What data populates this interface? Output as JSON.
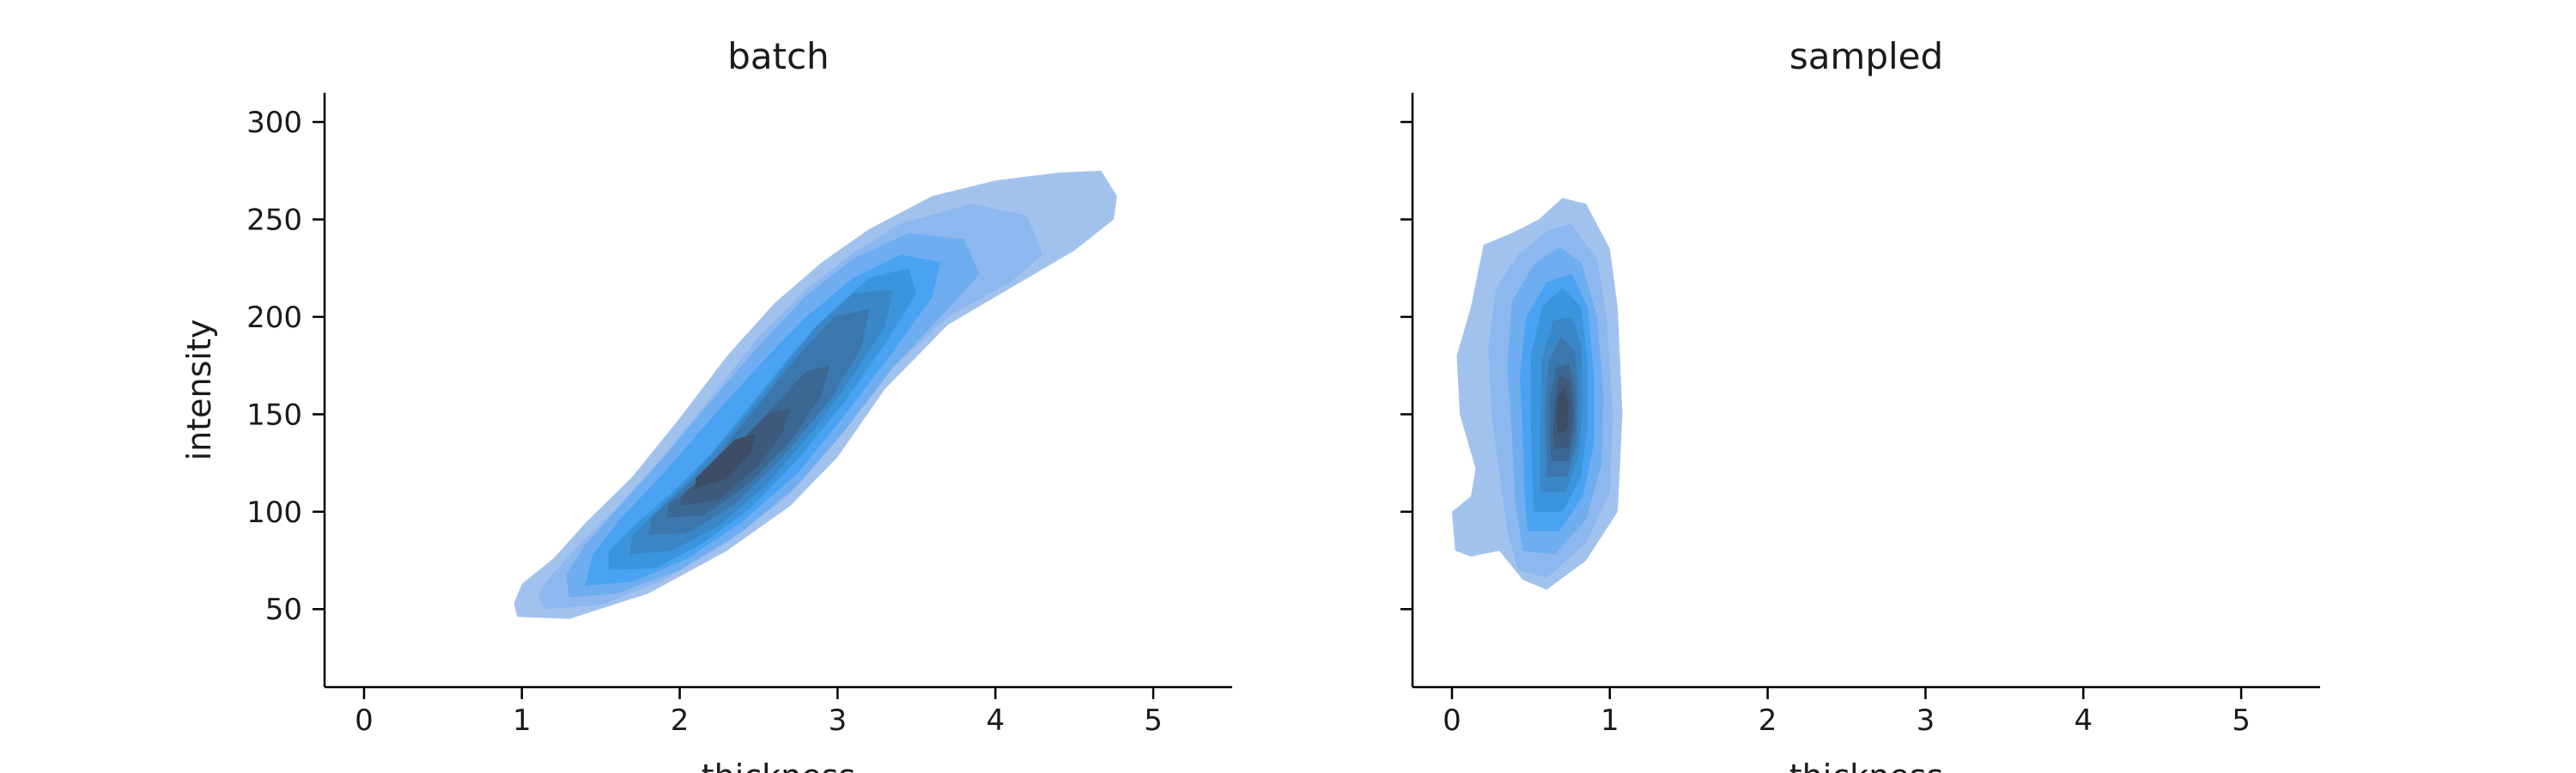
{
  "chart_data": [
    {
      "type": "kde",
      "title": "batch",
      "xlabel": "thickness",
      "ylabel": "intensity",
      "xlim": [
        -0.25,
        5.5
      ],
      "ylim": [
        10,
        315
      ],
      "xticks": [
        0,
        1,
        2,
        3,
        4,
        5
      ],
      "yticks": [
        50,
        100,
        150,
        200,
        250,
        300
      ],
      "show_yticklabels": true,
      "grid": false,
      "legend": "none",
      "colors": [
        "#a2c2ee",
        "#8db8ef",
        "#6fadf1",
        "#4aa3f2",
        "#3a95dd",
        "#3a86c6",
        "#3b77ac",
        "#3b6793",
        "#3d5a7d",
        "#3d4d66"
      ],
      "density_contours": [
        [
          [
            0.97,
            46
          ],
          [
            1.3,
            45
          ],
          [
            1.8,
            58
          ],
          [
            2.3,
            80
          ],
          [
            2.7,
            103
          ],
          [
            3.0,
            128
          ],
          [
            3.3,
            163
          ],
          [
            3.7,
            196
          ],
          [
            4.1,
            215
          ],
          [
            4.5,
            234
          ],
          [
            4.75,
            250
          ],
          [
            4.77,
            262
          ],
          [
            4.67,
            275
          ],
          [
            4.4,
            274
          ],
          [
            4.0,
            270
          ],
          [
            3.6,
            262
          ],
          [
            3.2,
            245
          ],
          [
            2.9,
            228
          ],
          [
            2.6,
            207
          ],
          [
            2.3,
            180
          ],
          [
            2.0,
            148
          ],
          [
            1.7,
            118
          ],
          [
            1.4,
            94
          ],
          [
            1.2,
            76
          ],
          [
            1.0,
            63
          ],
          [
            0.95,
            53
          ]
        ],
        [
          [
            1.15,
            50
          ],
          [
            1.5,
            52
          ],
          [
            1.9,
            65
          ],
          [
            2.3,
            84
          ],
          [
            2.7,
            109
          ],
          [
            3.0,
            137
          ],
          [
            3.3,
            170
          ],
          [
            3.7,
            200
          ],
          [
            4.1,
            218
          ],
          [
            4.3,
            232
          ],
          [
            4.2,
            252
          ],
          [
            3.85,
            258
          ],
          [
            3.4,
            248
          ],
          [
            3.1,
            233
          ],
          [
            2.8,
            214
          ],
          [
            2.5,
            190
          ],
          [
            2.2,
            159
          ],
          [
            1.9,
            129
          ],
          [
            1.6,
            102
          ],
          [
            1.35,
            82
          ],
          [
            1.15,
            64
          ],
          [
            1.1,
            56
          ]
        ],
        [
          [
            1.3,
            56
          ],
          [
            1.6,
            58
          ],
          [
            2.0,
            70
          ],
          [
            2.4,
            90
          ],
          [
            2.75,
            114
          ],
          [
            3.05,
            142
          ],
          [
            3.35,
            174
          ],
          [
            3.7,
            204
          ],
          [
            3.9,
            222
          ],
          [
            3.8,
            240
          ],
          [
            3.45,
            243
          ],
          [
            3.1,
            230
          ],
          [
            2.8,
            211
          ],
          [
            2.5,
            185
          ],
          [
            2.2,
            157
          ],
          [
            1.9,
            128
          ],
          [
            1.6,
            101
          ],
          [
            1.4,
            83
          ],
          [
            1.28,
            68
          ]
        ],
        [
          [
            1.4,
            62
          ],
          [
            1.7,
            64
          ],
          [
            2.05,
            76
          ],
          [
            2.4,
            95
          ],
          [
            2.75,
            120
          ],
          [
            3.05,
            150
          ],
          [
            3.35,
            182
          ],
          [
            3.6,
            210
          ],
          [
            3.65,
            228
          ],
          [
            3.4,
            232
          ],
          [
            3.1,
            220
          ],
          [
            2.8,
            200
          ],
          [
            2.5,
            175
          ],
          [
            2.2,
            148
          ],
          [
            1.9,
            120
          ],
          [
            1.62,
            96
          ],
          [
            1.45,
            78
          ]
        ],
        [
          [
            1.55,
            70
          ],
          [
            1.85,
            71
          ],
          [
            2.15,
            84
          ],
          [
            2.45,
            102
          ],
          [
            2.75,
            127
          ],
          [
            3.05,
            157
          ],
          [
            3.3,
            186
          ],
          [
            3.5,
            212
          ],
          [
            3.45,
            225
          ],
          [
            3.2,
            220
          ],
          [
            2.95,
            202
          ],
          [
            2.7,
            180
          ],
          [
            2.45,
            155
          ],
          [
            2.2,
            130
          ],
          [
            1.95,
            110
          ],
          [
            1.7,
            92
          ],
          [
            1.55,
            80
          ]
        ],
        [
          [
            1.68,
            78
          ],
          [
            1.95,
            80
          ],
          [
            2.25,
            93
          ],
          [
            2.55,
            114
          ],
          [
            2.85,
            142
          ],
          [
            3.1,
            170
          ],
          [
            3.3,
            195
          ],
          [
            3.35,
            214
          ],
          [
            3.1,
            212
          ],
          [
            2.85,
            194
          ],
          [
            2.6,
            168
          ],
          [
            2.35,
            143
          ],
          [
            2.1,
            120
          ],
          [
            1.85,
            100
          ],
          [
            1.7,
            88
          ]
        ],
        [
          [
            1.8,
            88
          ],
          [
            2.05,
            89
          ],
          [
            2.35,
            104
          ],
          [
            2.65,
            128
          ],
          [
            2.95,
            157
          ],
          [
            3.15,
            184
          ],
          [
            3.2,
            204
          ],
          [
            2.98,
            200
          ],
          [
            2.75,
            180
          ],
          [
            2.5,
            155
          ],
          [
            2.25,
            130
          ],
          [
            2.0,
            110
          ],
          [
            1.82,
            97
          ]
        ],
        [
          [
            1.92,
            97
          ],
          [
            2.15,
            98
          ],
          [
            2.45,
            115
          ],
          [
            2.7,
            136
          ],
          [
            2.9,
            160
          ],
          [
            2.95,
            175
          ],
          [
            2.8,
            172
          ],
          [
            2.55,
            150
          ],
          [
            2.3,
            128
          ],
          [
            2.08,
            112
          ],
          [
            1.93,
            104
          ]
        ],
        [
          [
            2.0,
            103
          ],
          [
            2.25,
            106
          ],
          [
            2.5,
            124
          ],
          [
            2.65,
            140
          ],
          [
            2.7,
            153
          ],
          [
            2.55,
            150
          ],
          [
            2.35,
            133
          ],
          [
            2.12,
            116
          ],
          [
            2.02,
            109
          ]
        ],
        [
          [
            2.1,
            112
          ],
          [
            2.3,
            117
          ],
          [
            2.45,
            130
          ],
          [
            2.48,
            140
          ],
          [
            2.35,
            137
          ],
          [
            2.2,
            125
          ],
          [
            2.1,
            117
          ]
        ]
      ]
    },
    {
      "type": "kde",
      "title": "sampled",
      "xlabel": "thickness",
      "ylabel": "",
      "xlim": [
        -0.25,
        5.5
      ],
      "ylim": [
        10,
        315
      ],
      "xticks": [
        0,
        1,
        2,
        3,
        4,
        5
      ],
      "yticks": [
        50,
        100,
        150,
        200,
        250,
        300
      ],
      "show_yticklabels": false,
      "grid": false,
      "legend": "none",
      "colors": [
        "#a2c2ee",
        "#8db8ef",
        "#6fadf1",
        "#4aa3f2",
        "#3a95dd",
        "#3a86c6",
        "#3b77ac",
        "#3b6793",
        "#3d5a7d",
        "#3d4d66"
      ],
      "density_contours": [
        [
          [
            0.45,
            65
          ],
          [
            0.6,
            60
          ],
          [
            0.85,
            75
          ],
          [
            1.05,
            100
          ],
          [
            1.08,
            150
          ],
          [
            1.05,
            205
          ],
          [
            1.0,
            235
          ],
          [
            0.85,
            258
          ],
          [
            0.7,
            261
          ],
          [
            0.55,
            250
          ],
          [
            0.38,
            243
          ],
          [
            0.2,
            237
          ],
          [
            0.12,
            205
          ],
          [
            0.03,
            180
          ],
          [
            0.05,
            150
          ],
          [
            0.15,
            122
          ],
          [
            0.12,
            108
          ],
          [
            0.0,
            100
          ],
          [
            0.02,
            80
          ],
          [
            0.12,
            77
          ],
          [
            0.3,
            80
          ]
        ],
        [
          [
            0.42,
            70
          ],
          [
            0.6,
            66
          ],
          [
            0.85,
            84
          ],
          [
            1.0,
            110
          ],
          [
            1.02,
            150
          ],
          [
            0.98,
            200
          ],
          [
            0.92,
            230
          ],
          [
            0.75,
            248
          ],
          [
            0.6,
            244
          ],
          [
            0.42,
            232
          ],
          [
            0.28,
            215
          ],
          [
            0.23,
            185
          ],
          [
            0.25,
            150
          ],
          [
            0.3,
            120
          ],
          [
            0.35,
            90
          ]
        ],
        [
          [
            0.45,
            80
          ],
          [
            0.65,
            78
          ],
          [
            0.85,
            96
          ],
          [
            0.95,
            125
          ],
          [
            0.96,
            160
          ],
          [
            0.92,
            200
          ],
          [
            0.82,
            228
          ],
          [
            0.68,
            236
          ],
          [
            0.52,
            227
          ],
          [
            0.38,
            208
          ],
          [
            0.35,
            175
          ],
          [
            0.38,
            140
          ],
          [
            0.4,
            105
          ]
        ],
        [
          [
            0.48,
            90
          ],
          [
            0.68,
            90
          ],
          [
            0.83,
            108
          ],
          [
            0.9,
            135
          ],
          [
            0.9,
            170
          ],
          [
            0.86,
            205
          ],
          [
            0.76,
            222
          ],
          [
            0.6,
            218
          ],
          [
            0.47,
            200
          ],
          [
            0.43,
            170
          ],
          [
            0.45,
            135
          ],
          [
            0.46,
            108
          ]
        ],
        [
          [
            0.52,
            100
          ],
          [
            0.7,
            100
          ],
          [
            0.82,
            118
          ],
          [
            0.86,
            145
          ],
          [
            0.86,
            175
          ],
          [
            0.82,
            205
          ],
          [
            0.7,
            215
          ],
          [
            0.57,
            205
          ],
          [
            0.5,
            180
          ],
          [
            0.5,
            145
          ],
          [
            0.51,
            115
          ]
        ],
        [
          [
            0.56,
            110
          ],
          [
            0.72,
            110
          ],
          [
            0.8,
            128
          ],
          [
            0.83,
            155
          ],
          [
            0.82,
            185
          ],
          [
            0.76,
            200
          ],
          [
            0.64,
            198
          ],
          [
            0.57,
            178
          ],
          [
            0.56,
            145
          ],
          [
            0.56,
            120
          ]
        ],
        [
          [
            0.6,
            118
          ],
          [
            0.73,
            118
          ],
          [
            0.79,
            135
          ],
          [
            0.8,
            160
          ],
          [
            0.78,
            182
          ],
          [
            0.69,
            190
          ],
          [
            0.61,
            176
          ],
          [
            0.59,
            150
          ],
          [
            0.6,
            128
          ]
        ],
        [
          [
            0.63,
            126
          ],
          [
            0.74,
            126
          ],
          [
            0.78,
            143
          ],
          [
            0.78,
            163
          ],
          [
            0.74,
            176
          ],
          [
            0.66,
            174
          ],
          [
            0.62,
            158
          ],
          [
            0.62,
            138
          ]
        ],
        [
          [
            0.65,
            132
          ],
          [
            0.74,
            133
          ],
          [
            0.77,
            150
          ],
          [
            0.75,
            167
          ],
          [
            0.68,
            170
          ],
          [
            0.65,
            155
          ],
          [
            0.64,
            140
          ]
        ],
        [
          [
            0.67,
            140
          ],
          [
            0.73,
            142
          ],
          [
            0.74,
            155
          ],
          [
            0.71,
            163
          ],
          [
            0.67,
            160
          ],
          [
            0.66,
            148
          ]
        ]
      ]
    }
  ]
}
